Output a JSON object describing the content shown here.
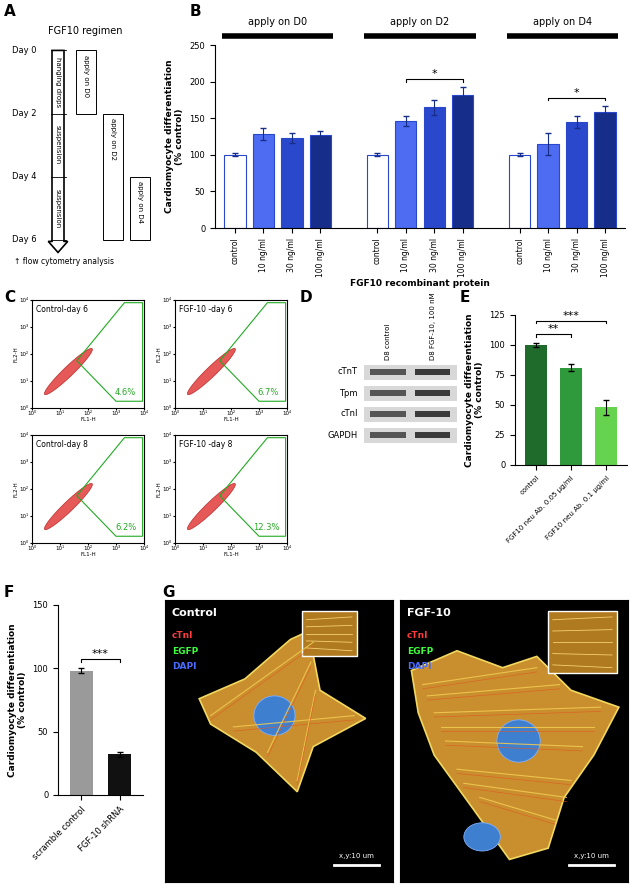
{
  "chart_data": [
    {
      "panel": "B",
      "type": "bar",
      "ylabel": "Cardiomyocyte differentiation\n(% control)",
      "xlabel": "FGF10 recombinant protein",
      "ylim": [
        0,
        250
      ],
      "yticks": [
        0,
        50,
        100,
        150,
        200,
        250
      ],
      "groups": [
        {
          "title": "apply on D0",
          "categories": [
            "control",
            "10 ng/ml",
            "30 ng/ml",
            "100 ng/ml"
          ],
          "values": [
            100,
            128,
            123,
            127
          ],
          "errors": [
            2,
            8,
            7,
            5
          ],
          "colors": [
            "#ffffff",
            "#4d6cf2",
            "#2a48cc",
            "#172d8a"
          ],
          "annotations": []
        },
        {
          "title": "apply on D2",
          "categories": [
            "control",
            "10 ng/ml",
            "30 ng/ml",
            "100 ng/ml"
          ],
          "values": [
            100,
            146,
            165,
            182
          ],
          "errors": [
            2,
            7,
            10,
            10
          ],
          "colors": [
            "#ffffff",
            "#4d6cf2",
            "#2a48cc",
            "#172d8a"
          ],
          "annotations": [
            {
              "text": "*",
              "from": 1,
              "to": 3
            }
          ]
        },
        {
          "title": "apply on D4",
          "categories": [
            "control",
            "10 ng/ml",
            "30 ng/ml",
            "100 ng/ml"
          ],
          "values": [
            100,
            115,
            145,
            158
          ],
          "errors": [
            2,
            15,
            8,
            9
          ],
          "colors": [
            "#ffffff",
            "#4d6cf2",
            "#2a48cc",
            "#172d8a"
          ],
          "annotations": [
            {
              "text": "*",
              "from": 1,
              "to": 3
            }
          ]
        }
      ]
    },
    {
      "panel": "E",
      "type": "bar",
      "ylabel": "Cardiomyocyte differentiation\n(% control)",
      "categories": [
        "control",
        "FGF10 neu Ab. 0.05 µg/ml",
        "FGF10 neu Ab. 0.1 µg/ml"
      ],
      "values": [
        100,
        81,
        48
      ],
      "errors": [
        2,
        3,
        6
      ],
      "colors": [
        "#1e6b2c",
        "#2f9a3c",
        "#66d34f"
      ],
      "ylim": [
        0,
        125
      ],
      "yticks": [
        0,
        25,
        50,
        75,
        100,
        125
      ],
      "annotations": [
        {
          "text": "**",
          "from": 0,
          "to": 1
        },
        {
          "text": "***",
          "from": 0,
          "to": 2
        }
      ]
    },
    {
      "panel": "F",
      "type": "bar",
      "ylabel": "Cardiomyocyte differentiation\n(% control)",
      "categories": [
        "scramble control",
        "FGF-10 shRNA"
      ],
      "values": [
        98,
        32
      ],
      "errors": [
        2,
        2
      ],
      "colors": [
        "#9a9a9a",
        "#111111"
      ],
      "ylim": [
        0,
        150
      ],
      "yticks": [
        0,
        50,
        100,
        150
      ],
      "annotations": [
        {
          "text": "***",
          "from": 0,
          "to": 1
        }
      ]
    }
  ],
  "diagram_A": {
    "panel": "A",
    "title": "FGF10 regimen",
    "days": [
      {
        "value": 0,
        "label": "Day 0"
      },
      {
        "value": 2,
        "label": "Day 2"
      },
      {
        "value": 4,
        "label": "Day 4"
      },
      {
        "value": 6,
        "label": "Day 6"
      }
    ],
    "stages": [
      "hanging drops",
      "suspension",
      "suspension"
    ],
    "applications": [
      {
        "label": "apply on D0",
        "start": 0,
        "end": 2
      },
      {
        "label": "apply on D2",
        "start": 2,
        "end": 6
      },
      {
        "label": "apply on D4",
        "start": 4,
        "end": 6
      }
    ],
    "end_note": "↑ flow cytometry analysis"
  },
  "flow_C": {
    "panel": "C",
    "xlabel": "FL1-H",
    "ylabel": "FL2-H",
    "xlim": [
      1,
      10000
    ],
    "ylim": [
      1,
      10000
    ],
    "ticks": [
      {
        "value": 1,
        "label": "10⁰"
      },
      {
        "value": 10,
        "label": "10¹"
      },
      {
        "value": 100,
        "label": "10²"
      },
      {
        "value": 1000,
        "label": "10³"
      },
      {
        "value": 10000,
        "label": "10⁴"
      }
    ],
    "plots": [
      {
        "title": "Control-day 6",
        "gate": "4.6%"
      },
      {
        "title": "FGF-10 -day 6",
        "gate": "6.7%"
      },
      {
        "title": "Control-day 8",
        "gate": "6.2%"
      },
      {
        "title": "FGF-10 -day 8",
        "gate": "12.3%"
      }
    ]
  },
  "blot_D": {
    "panel": "D",
    "lanes": [
      "D8 control",
      "D8 FGF-10, 100 nM"
    ],
    "proteins": [
      "cTnT",
      "Tpm",
      "cTnI",
      "GAPDH"
    ]
  },
  "images_G": {
    "panel": "G",
    "images": [
      {
        "title": "Control"
      },
      {
        "title": "FGF-10"
      }
    ],
    "channels": [
      {
        "name": "cTnI",
        "color": "#ff3b3b"
      },
      {
        "name": "EGFP",
        "color": "#3bff3b"
      },
      {
        "name": "DAPI",
        "color": "#4a6bff"
      }
    ],
    "scale_bar": "x,y:10 um"
  }
}
